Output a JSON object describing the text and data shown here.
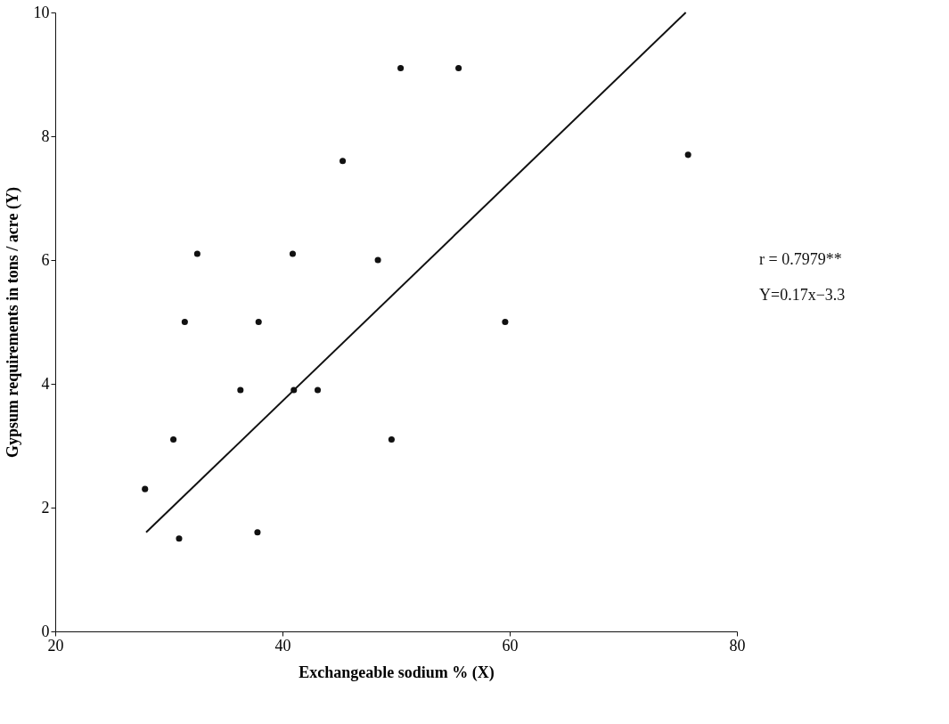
{
  "chart_data": {
    "type": "scatter",
    "xlabel": "Exchangeable sodium % (X)",
    "ylabel": "Gypsum requirements in tons / acre (Y)",
    "xlim": [
      20,
      80
    ],
    "xticks": [
      20,
      40,
      60,
      80
    ],
    "ylim": [
      0,
      10
    ],
    "yticks": [
      0,
      2,
      4,
      6,
      8,
      10
    ],
    "grid": false,
    "series": [
      {
        "type": "scatter",
        "color": "#111111",
        "marker": "circle",
        "x": [
          27.9,
          30.4,
          30.9,
          31.4,
          32.5,
          36.3,
          37.9,
          37.8,
          40.9,
          41.0,
          43.1,
          45.3,
          48.4,
          49.6,
          50.4,
          55.5,
          59.6,
          75.7
        ],
        "values": [
          2.3,
          3.1,
          1.5,
          5.0,
          6.1,
          3.9,
          5.0,
          1.6,
          6.1,
          3.9,
          3.9,
          7.6,
          6.0,
          3.1,
          9.1,
          9.1,
          5.0,
          7.7
        ]
      },
      {
        "type": "line",
        "color": "#111111",
        "line_style": "solid",
        "x": [
          28.0,
          75.5
        ],
        "values": [
          1.6,
          10.0
        ]
      }
    ],
    "annotations": [
      "r = 0.7979**",
      "Y=0.17x−3.3"
    ]
  }
}
